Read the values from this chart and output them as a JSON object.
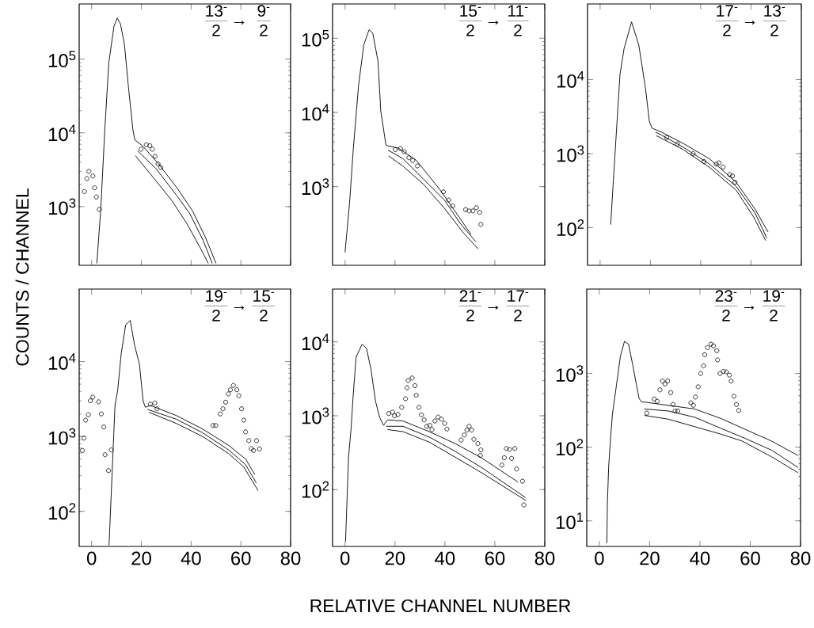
{
  "chart_data": [
    {
      "type": "line",
      "log": "y",
      "tick_labels": "y",
      "ylabel": "COUNTS / CHANNEL",
      "annotations": [
        "13$^{-}$",
        "2",
        "→",
        "9$^{-}$",
        "2"
      ],
      "xlim": [
        -5,
        80
      ],
      "xticks": [
        0,
        20,
        40,
        60,
        80
      ],
      "ylim": [
        160,
        560000
      ],
      "yticks": [
        {
          "value": 1000,
          "label": "10$^{3}$"
        },
        {
          "value": 10000,
          "label": "10$^{4}$"
        },
        {
          "value": 100000,
          "label": "10$^{5}$"
        }
      ],
      "series": [
        {
          "color": "#000000",
          "marker": "none",
          "x": [
            2.1,
            3.7,
            5.3,
            6.9,
            9.0,
            10.3,
            11.6,
            13.2,
            14.8,
            16.6,
            17.4,
            20.6,
            26.9,
            34.3,
            40.6,
            45.8,
            50.0
          ],
          "values": [
            170,
            950,
            11000,
            89000,
            280000,
            360000,
            300000,
            158000,
            42000,
            11000,
            8000,
            6600,
            3800,
            1800,
            870,
            380,
            170
          ]
        },
        {
          "color": "#000000",
          "marker": "none",
          "x": [
            18.5,
            25.8,
            34.3,
            39.5,
            44.8,
            48.5
          ],
          "values": [
            5700,
            3300,
            1400,
            800,
            350,
            170
          ]
        },
        {
          "color": "#000000",
          "marker": "none",
          "x": [
            17.6,
            23.7,
            32.1,
            38.4,
            43.7,
            46.9
          ],
          "values": [
            4900,
            2750,
            1230,
            580,
            275,
            170
          ]
        },
        {
          "type": "scatter",
          "color": "#000000",
          "marker": "circle",
          "x": [
            -2.9,
            -1.9,
            -1.1,
            0.5,
            1.2,
            1.9,
            3.1,
            19.9,
            22.0,
            23.4,
            24.4,
            25.5,
            26.7,
            27.8
          ],
          "values": [
            1600,
            2400,
            3000,
            2600,
            1800,
            1350,
            920,
            6000,
            6900,
            6700,
            6000,
            4800,
            3800,
            3400
          ]
        }
      ]
    },
    {
      "type": "line",
      "log": "y",
      "tick_labels": "y",
      "annotations": [
        "15$^{-}$",
        "2",
        "→",
        "11$^{-}$",
        "2"
      ],
      "xlim": [
        -5,
        80
      ],
      "xticks": [
        0,
        20,
        40,
        60,
        80
      ],
      "ylim": [
        87,
        290000
      ],
      "yticks": [
        {
          "value": 1000,
          "label": "10$^{3}$"
        },
        {
          "value": 10000,
          "label": "10$^{4}$"
        },
        {
          "value": 100000,
          "label": "10$^{5}$"
        }
      ],
      "series": [
        {
          "color": "#000000",
          "marker": "none",
          "x": [
            0,
            1.8,
            3.3,
            5.4,
            7.5,
            9.6,
            11.1,
            13.2,
            14.3,
            16.4,
            21.4,
            28.6,
            38.0,
            45.2,
            50.5
          ],
          "values": [
            130,
            600,
            3200,
            23000,
            81000,
            130000,
            117000,
            49000,
            10500,
            3600,
            3300,
            2250,
            910,
            410,
            225
          ]
        },
        {
          "color": "#000000",
          "marker": "none",
          "x": [
            17.2,
            23.1,
            31.5,
            39.8,
            46.1,
            52.4
          ],
          "values": [
            3100,
            2400,
            1250,
            660,
            320,
            180
          ]
        },
        {
          "color": "#000000",
          "marker": "none",
          "x": [
            17.4,
            23.1,
            31.5,
            39.8,
            47.1,
            53.3
          ],
          "values": [
            2600,
            1900,
            1070,
            510,
            245,
            145
          ]
        },
        {
          "type": "scatter",
          "color": "#000000",
          "marker": "circle",
          "x": [
            20.1,
            22.2,
            23.7,
            25.6,
            27.1,
            29.0,
            39.4,
            41.5,
            43.1,
            48.3,
            49.7,
            51.2,
            52.6,
            53.9,
            54.4
          ],
          "values": [
            3150,
            3250,
            2950,
            2450,
            2250,
            1900,
            850,
            660,
            550,
            490,
            470,
            470,
            520,
            450,
            310
          ]
        }
      ]
    },
    {
      "type": "line",
      "log": "y",
      "tick_labels": "y",
      "annotations": [
        "17$^{-}$",
        "2",
        "→",
        "13$^{-}$",
        "2"
      ],
      "xlim": [
        -5,
        80
      ],
      "xticks": [
        0,
        20,
        40,
        60,
        80
      ],
      "ylim": [
        31,
        105000
      ],
      "yticks": [
        {
          "value": 100,
          "label": "10$^{2}$"
        },
        {
          "value": 1000,
          "label": "10$^{3}$"
        },
        {
          "value": 10000,
          "label": "10$^{4}$"
        }
      ],
      "series": [
        {
          "color": "#000000",
          "marker": "none",
          "x": [
            4.2,
            5.8,
            7.9,
            9.5,
            12.5,
            15.4,
            18.0,
            19.6,
            20.7,
            24.4,
            32.9,
            43.5,
            54.1,
            61.5,
            66.8
          ],
          "values": [
            110,
            850,
            11700,
            26000,
            60000,
            29000,
            7800,
            2700,
            2200,
            1950,
            1380,
            850,
            410,
            180,
            87
          ]
        },
        {
          "color": "#000000",
          "marker": "none",
          "x": [
            22.0,
            24.4,
            32.9,
            43.5,
            54.1,
            61.5,
            66.3
          ],
          "values": [
            1950,
            1780,
            1230,
            720,
            360,
            160,
            72
          ]
        },
        {
          "color": "#000000",
          "marker": "none",
          "x": [
            22.3,
            32.9,
            43.5,
            54.1,
            61.0,
            65.8
          ],
          "values": [
            1750,
            1140,
            650,
            320,
            140,
            67
          ]
        },
        {
          "type": "scatter",
          "color": "#000000",
          "marker": "circle",
          "x": [
            26.5,
            30.7,
            37.0,
            41.3,
            46.2,
            47.3,
            48.9,
            51.5,
            52.6,
            53.6
          ],
          "values": [
            1650,
            1350,
            1000,
            780,
            720,
            750,
            660,
            520,
            500,
            410
          ]
        }
      ]
    },
    {
      "type": "line",
      "log": "y",
      "annotations": [
        "19$^{-}$",
        "2",
        "→",
        "15$^{-}$",
        "2"
      ],
      "xlim": [
        -5,
        80
      ],
      "xticks": [
        0,
        20,
        40,
        60,
        80
      ],
      "ylim": [
        34,
        93000
      ],
      "yticks": [
        {
          "value": 100,
          "label": "10$^{2}$"
        },
        {
          "value": 1000,
          "label": "10$^{3}$"
        },
        {
          "value": 10000,
          "label": "10$^{4}$"
        }
      ],
      "series": [
        {
          "color": "#000000",
          "marker": "none",
          "x": [
            7.0,
            9.4,
            10.5,
            11.9,
            13.7,
            15.5,
            17.3,
            19.2,
            20.7,
            21.6,
            23.6,
            34.1,
            44.6,
            55.1,
            61.9,
            65.6
          ],
          "values": [
            35,
            2600,
            4200,
            12800,
            31000,
            35500,
            16400,
            9300,
            3000,
            2450,
            2600,
            1900,
            1260,
            760,
            500,
            310
          ]
        },
        {
          "color": "#000000",
          "marker": "none",
          "x": [
            22.4,
            34.1,
            44.6,
            55.1,
            61.9,
            66.2
          ],
          "values": [
            2300,
            1700,
            1120,
            660,
            420,
            240
          ]
        },
        {
          "color": "#000000",
          "marker": "none",
          "x": [
            23.1,
            34.1,
            44.6,
            55.1,
            61.2,
            66.9
          ],
          "values": [
            2100,
            1490,
            1000,
            590,
            390,
            190
          ]
        },
        {
          "type": "scatter",
          "color": "#000000",
          "marker": "circle",
          "x": [
            -3.7,
            -3.1,
            -2.4,
            -1.3,
            -0.5,
            0.5,
            2.8,
            3.9,
            4.9,
            5.4,
            6.8,
            7.9,
            23.6,
            25.4,
            26.3,
            48.8,
            49.9,
            51.7,
            52.8,
            53.9,
            55.0,
            55.8,
            57.0,
            58.4,
            59.2,
            60.3,
            61.2,
            61.9,
            63.2,
            64.2,
            65.1,
            66.3,
            67.5
          ],
          "values": [
            650,
            950,
            1650,
            1950,
            3000,
            3350,
            2900,
            2000,
            1340,
            570,
            350,
            660,
            2700,
            2800,
            2340,
            1400,
            1400,
            2000,
            2340,
            2870,
            3700,
            4200,
            4800,
            4200,
            3500,
            2340,
            1650,
            1150,
            880,
            690,
            650,
            880,
            680
          ]
        }
      ]
    },
    {
      "type": "line",
      "log": "y",
      "xlabel": "RELATIVE CHANNEL NUMBER",
      "annotations": [
        "21$^{-}$",
        "2",
        "→",
        "17$^{-}$",
        "2"
      ],
      "xlim": [
        -5,
        80
      ],
      "xticks": [
        0,
        20,
        40,
        60,
        80
      ],
      "ylim": [
        17,
        52000
      ],
      "yticks": [
        {
          "value": 100,
          "label": "10$^{2}$"
        },
        {
          "value": 1000,
          "label": "10$^{3}$"
        },
        {
          "value": 10000,
          "label": "10$^{4}$"
        }
      ],
      "series": [
        {
          "color": "#000000",
          "marker": "none",
          "x": [
            0.2,
            1.4,
            2.4,
            3.2,
            4.4,
            6.8,
            8.6,
            10.4,
            12.2,
            13.8,
            15.4,
            17.0,
            23.2,
            33.7,
            44.1,
            54.6,
            69.2
          ],
          "values": [
            20,
            275,
            660,
            1780,
            6200,
            9300,
            8200,
            4200,
            1580,
            960,
            740,
            880,
            850,
            610,
            420,
            270,
            127
          ]
        },
        {
          "color": "#000000",
          "marker": "none",
          "x": [
            16.5,
            23.2,
            33.7,
            44.1,
            54.6,
            72.3
          ],
          "values": [
            720,
            720,
            515,
            330,
            200,
            78
          ]
        },
        {
          "color": "#000000",
          "marker": "none",
          "x": [
            17.0,
            23.2,
            33.7,
            44.1,
            54.6,
            72.5
          ],
          "values": [
            650,
            610,
            440,
            275,
            170,
            71
          ]
        },
        {
          "type": "scatter",
          "color": "#000000",
          "marker": "circle",
          "x": [
            17.5,
            19.0,
            19.8,
            21.2,
            22.7,
            24.2,
            24.8,
            25.3,
            26.9,
            28.0,
            28.5,
            29.6,
            30.6,
            31.7,
            32.7,
            34.0,
            34.8,
            36.0,
            37.3,
            38.6,
            39.9,
            40.8,
            46.5,
            47.8,
            48.8,
            49.7,
            50.7,
            51.6,
            53.2,
            54.4,
            54.2,
            62.8,
            63.8,
            64.6,
            65.9,
            68.0,
            66.7,
            68.7,
            71.1,
            71.6
          ],
          "values": [
            1070,
            1120,
            1000,
            1040,
            1300,
            1700,
            2400,
            3000,
            3250,
            2560,
            1900,
            1300,
            1030,
            880,
            720,
            740,
            650,
            850,
            960,
            900,
            790,
            660,
            470,
            550,
            640,
            720,
            640,
            480,
            420,
            345,
            290,
            215,
            270,
            360,
            350,
            360,
            265,
            190,
            130,
            62
          ]
        }
      ]
    },
    {
      "type": "line",
      "log": "y",
      "annotations": [
        "23$^{-}$",
        "2",
        "→",
        "19$^{-}$",
        "2"
      ],
      "xlim": [
        -5,
        80
      ],
      "xticks": [
        0,
        20,
        40,
        60,
        80
      ],
      "ylim": [
        4.5,
        14000
      ],
      "yticks": [
        {
          "value": 10,
          "label": "10$^{1}$"
        },
        {
          "value": 100,
          "label": "10$^{2}$"
        },
        {
          "value": 1000,
          "label": "10$^{3}$"
        }
      ],
      "series": [
        {
          "color": "#000000",
          "marker": "none",
          "x": [
            3.0,
            3.2,
            3.7,
            4.2,
            5.2,
            6.8,
            8.4,
            10.0,
            11.6,
            13.2,
            14.8,
            15.8,
            16.8,
            17.9,
            27.4,
            37.9,
            48.4,
            57.9,
            68.5,
            79.0
          ],
          "values": [
            5,
            17,
            53,
            98,
            280,
            690,
            1730,
            2730,
            2500,
            1350,
            690,
            460,
            410,
            410,
            370,
            330,
            245,
            175,
            121,
            77
          ]
        },
        {
          "color": "#000000",
          "marker": "none",
          "x": [
            17.9,
            27.4,
            37.9,
            48.4,
            57.9,
            68.5,
            79.0
          ],
          "values": [
            330,
            310,
            255,
            180,
            132,
            91,
            53
          ]
        },
        {
          "color": "#000000",
          "marker": "none",
          "x": [
            17.9,
            27.4,
            37.9,
            48.4,
            56.8,
            68.5,
            79.0
          ],
          "values": [
            270,
            240,
            190,
            150,
            121,
            74,
            45
          ]
        },
        {
          "type": "scatter",
          "color": "#000000",
          "marker": "circle",
          "x": [
            18.9,
            21.8,
            23.0,
            24.1,
            25.1,
            26.1,
            27.2,
            28.4,
            29.3,
            30.1,
            31.2,
            36.4,
            37.4,
            38.2,
            39.3,
            40.3,
            41.4,
            41.9,
            43.0,
            44.4,
            45.4,
            46.7,
            47.0,
            48.0,
            49.3,
            50.5,
            51.7,
            52.4,
            53.5,
            54.5,
            55.4
          ],
          "values": [
            290,
            450,
            420,
            600,
            790,
            720,
            790,
            550,
            380,
            310,
            310,
            400,
            370,
            480,
            660,
            1000,
            1270,
            1800,
            2250,
            2500,
            2370,
            2040,
            1530,
            1000,
            1070,
            1050,
            950,
            790,
            490,
            380,
            315
          ]
        }
      ]
    }
  ]
}
